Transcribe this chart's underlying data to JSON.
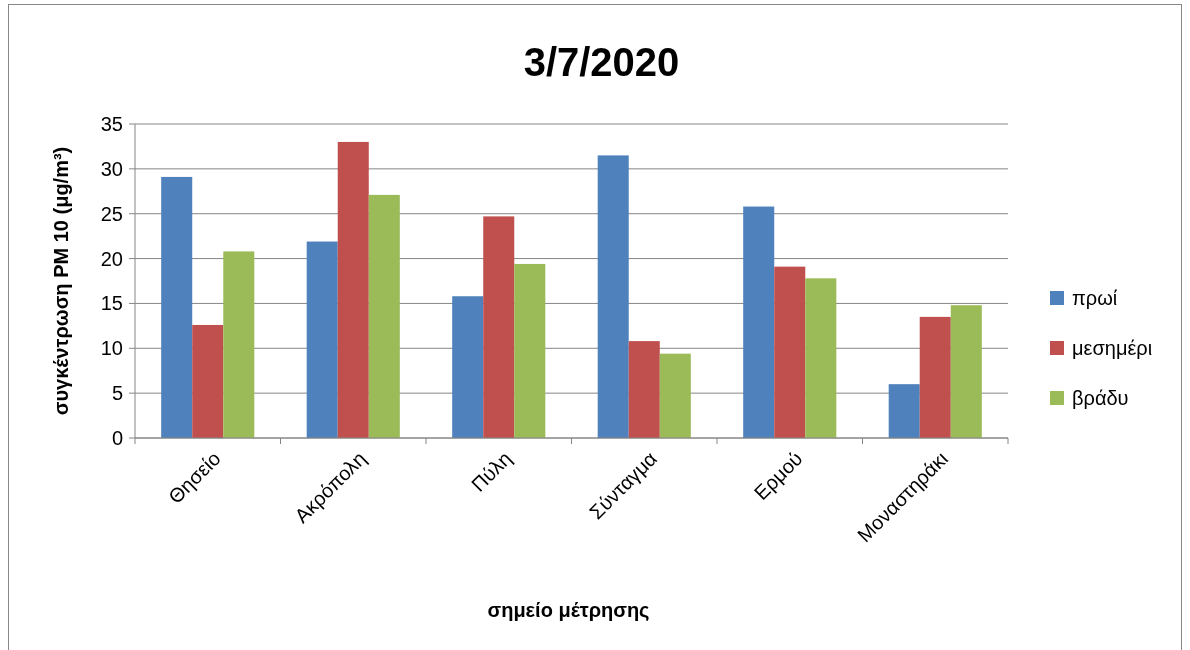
{
  "chart_data": {
    "type": "bar",
    "title": "3/7/2020",
    "xlabel": "σημείο μέτρησης",
    "ylabel": "συγκέντρωση PM 10 (μg/m³)",
    "categories": [
      "Θησείο",
      "Ακρόπολη",
      "Πύλη",
      "Σύνταγμα",
      "Ερμού",
      "Μοναστηράκι"
    ],
    "series": [
      {
        "name": "πρωί",
        "color": "#4f81bd",
        "values": [
          29.1,
          21.9,
          15.8,
          31.5,
          25.8,
          6.0
        ]
      },
      {
        "name": "μεσημέρι",
        "color": "#c0504d",
        "values": [
          12.6,
          33.0,
          24.7,
          10.8,
          19.1,
          13.5
        ]
      },
      {
        "name": "βράδυ",
        "color": "#9bbb59",
        "values": [
          20.8,
          27.1,
          19.4,
          9.4,
          17.8,
          14.8
        ]
      }
    ],
    "ylim": [
      0,
      35
    ],
    "yticks": [
      0,
      5,
      10,
      15,
      20,
      25,
      30,
      35
    ],
    "grid": "y",
    "legend": "right"
  }
}
